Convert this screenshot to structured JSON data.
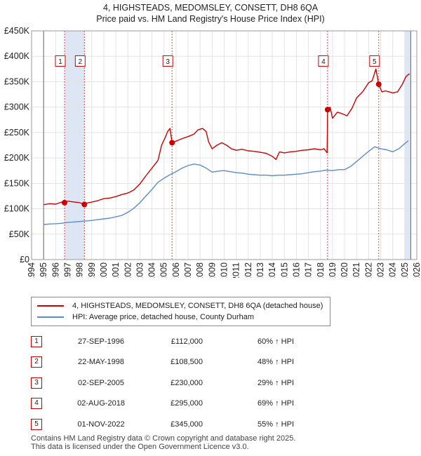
{
  "header": {
    "title_line1": "4, HIGHSTEADS, MEDOMSLEY, CONSETT, DH8 6QA",
    "title_line2": "Price paid vs. HM Land Registry's House Price Index (HPI)"
  },
  "colors": {
    "price_line": "#cc0000",
    "hpi_line": "#5b8ccc",
    "shade": "#dde6f5",
    "marker_border": "#cc0000"
  },
  "chart_data": {
    "type": "line",
    "x_range": [
      1994,
      2026
    ],
    "ylim": [
      0,
      450000
    ],
    "y_ticks": [
      0,
      50000,
      100000,
      150000,
      200000,
      250000,
      300000,
      350000,
      400000,
      450000
    ],
    "y_tick_labels": [
      "£0",
      "£50K",
      "£100K",
      "£150K",
      "£200K",
      "£250K",
      "£300K",
      "£350K",
      "£400K",
      "£450K"
    ],
    "x_ticks": [
      1994,
      1995,
      1996,
      1997,
      1998,
      1999,
      2000,
      2001,
      2002,
      2003,
      2004,
      2005,
      2006,
      2007,
      2008,
      2009,
      2010,
      2011,
      2012,
      2013,
      2014,
      2015,
      2016,
      2017,
      2018,
      2019,
      2020,
      2021,
      2022,
      2023,
      2024,
      2025,
      2026
    ],
    "x_tick_labels": [
      "1994",
      "1995",
      "1996",
      "1997",
      "1998",
      "1999",
      "2000",
      "2001",
      "2002",
      "2003",
      "2004",
      "2005",
      "2006",
      "2007",
      "2008",
      "2009",
      "2010",
      "2011",
      "2012",
      "2013",
      "2014",
      "2015",
      "2016",
      "2017",
      "2018",
      "2019",
      "2020",
      "2021",
      "2022",
      "2023",
      "2024",
      "2025",
      "2026"
    ],
    "data_start": 1995.0,
    "data_end": 2025.5,
    "shaded_ranges": [
      [
        1996.74,
        1998.39
      ],
      [
        2005.67,
        2005.67
      ],
      [
        2018.59,
        2018.59
      ],
      [
        2022.84,
        2022.84
      ],
      [
        2025.0,
        2025.5
      ]
    ],
    "series": [
      {
        "name": "4, HIGHSTEADS, MEDOMSLEY, CONSETT, DH8 6QA (detached house)",
        "x": [
          1995.0,
          1995.5,
          1996.0,
          1996.5,
          1996.74,
          1997.0,
          1997.3,
          1997.6,
          1998.0,
          1998.39,
          1998.7,
          1999.0,
          1999.5,
          2000.0,
          2000.5,
          2001.0,
          2001.5,
          2002.0,
          2002.5,
          2003.0,
          2003.5,
          2004.0,
          2004.5,
          2004.8,
          2005.1,
          2005.3,
          2005.5,
          2005.67,
          2006.0,
          2006.5,
          2007.0,
          2007.5,
          2007.8,
          2008.2,
          2008.5,
          2008.7,
          2009.0,
          2009.4,
          2009.8,
          2010.2,
          2010.6,
          2011.0,
          2011.5,
          2012.0,
          2012.5,
          2013.0,
          2013.5,
          2014.0,
          2014.3,
          2014.6,
          2015.0,
          2015.5,
          2016.0,
          2016.5,
          2017.0,
          2017.5,
          2018.0,
          2018.3,
          2018.55,
          2018.59,
          2018.8,
          2019.0,
          2019.4,
          2019.8,
          2020.2,
          2020.6,
          2021.0,
          2021.5,
          2022.0,
          2022.3,
          2022.6,
          2022.84,
          2023.1,
          2023.4,
          2023.7,
          2024.0,
          2024.4,
          2024.8,
          2025.1,
          2025.4
        ],
        "y": [
          108000,
          110000,
          109000,
          113000,
          112000,
          115000,
          114000,
          113000,
          112000,
          108500,
          112000,
          113000,
          116000,
          120000,
          121000,
          124000,
          128000,
          131000,
          137000,
          149000,
          165000,
          180000,
          195000,
          225000,
          240000,
          252000,
          258000,
          230000,
          233000,
          238000,
          242000,
          247000,
          255000,
          258000,
          252000,
          232000,
          218000,
          225000,
          230000,
          225000,
          218000,
          215000,
          217000,
          214000,
          213000,
          211000,
          209000,
          203000,
          197000,
          212000,
          210000,
          212000,
          213000,
          215000,
          216000,
          218000,
          216000,
          218000,
          210000,
          295000,
          300000,
          278000,
          290000,
          287000,
          283000,
          297000,
          318000,
          330000,
          348000,
          352000,
          375000,
          345000,
          330000,
          332000,
          330000,
          328000,
          330000,
          345000,
          360000,
          366000
        ]
      },
      {
        "name": "HPI: Average price, detached house, County Durham",
        "x": [
          1995.0,
          1995.5,
          1996.0,
          1996.5,
          1997.0,
          1997.5,
          1998.0,
          1998.5,
          1999.0,
          1999.5,
          2000.0,
          2000.5,
          2001.0,
          2001.5,
          2002.0,
          2002.5,
          2003.0,
          2003.5,
          2004.0,
          2004.5,
          2005.0,
          2005.5,
          2006.0,
          2006.5,
          2007.0,
          2007.5,
          2008.0,
          2008.5,
          2009.0,
          2009.5,
          2010.0,
          2010.5,
          2011.0,
          2011.5,
          2012.0,
          2012.5,
          2013.0,
          2013.5,
          2014.0,
          2014.5,
          2015.0,
          2015.5,
          2016.0,
          2016.5,
          2017.0,
          2017.5,
          2018.0,
          2018.5,
          2019.0,
          2019.5,
          2020.0,
          2020.5,
          2021.0,
          2021.5,
          2022.0,
          2022.5,
          2023.0,
          2023.5,
          2024.0,
          2024.5,
          2025.0,
          2025.3
        ],
        "y": [
          69000,
          70000,
          70500,
          71500,
          73000,
          74000,
          75000,
          76000,
          77000,
          78500,
          80000,
          81500,
          84000,
          87000,
          93000,
          101000,
          112000,
          125000,
          138000,
          152000,
          160000,
          167000,
          173000,
          180000,
          185000,
          188000,
          186000,
          180000,
          172000,
          174000,
          175000,
          173000,
          171000,
          170000,
          168000,
          167000,
          166000,
          166000,
          165000,
          166000,
          166000,
          167000,
          168000,
          169000,
          171000,
          173000,
          174000,
          176000,
          175000,
          177000,
          177000,
          183000,
          193000,
          203000,
          213000,
          222000,
          218000,
          216000,
          212000,
          218000,
          228000,
          234000
        ]
      }
    ],
    "markers": [
      {
        "label": "1",
        "x": 1996.74,
        "y": 112000
      },
      {
        "label": "2",
        "x": 1998.39,
        "y": 108500
      },
      {
        "label": "3",
        "x": 2005.67,
        "y": 230000
      },
      {
        "label": "4",
        "x": 2018.59,
        "y": 295000
      },
      {
        "label": "5",
        "x": 2022.84,
        "y": 345000
      }
    ],
    "marker_box_value": 390000
  },
  "legend": {
    "price_label": "4, HIGHSTEADS, MEDOMSLEY, CONSETT, DH8 6QA (detached house)",
    "hpi_label": "HPI: Average price, detached house, County Durham"
  },
  "transactions": [
    {
      "num": "1",
      "date": "27-SEP-1996",
      "price": "£112,000",
      "hpi": "60% ↑ HPI"
    },
    {
      "num": "2",
      "date": "22-MAY-1998",
      "price": "£108,500",
      "hpi": "48% ↑ HPI"
    },
    {
      "num": "3",
      "date": "02-SEP-2005",
      "price": "£230,000",
      "hpi": "29% ↑ HPI"
    },
    {
      "num": "4",
      "date": "02-AUG-2018",
      "price": "£295,000",
      "hpi": "69% ↑ HPI"
    },
    {
      "num": "5",
      "date": "01-NOV-2022",
      "price": "£345,000",
      "hpi": "55% ↑ HPI"
    }
  ],
  "footer": {
    "line1": "Contains HM Land Registry data © Crown copyright and database right 2025.",
    "line2": "This data is licensed under the Open Government Licence v3.0."
  }
}
